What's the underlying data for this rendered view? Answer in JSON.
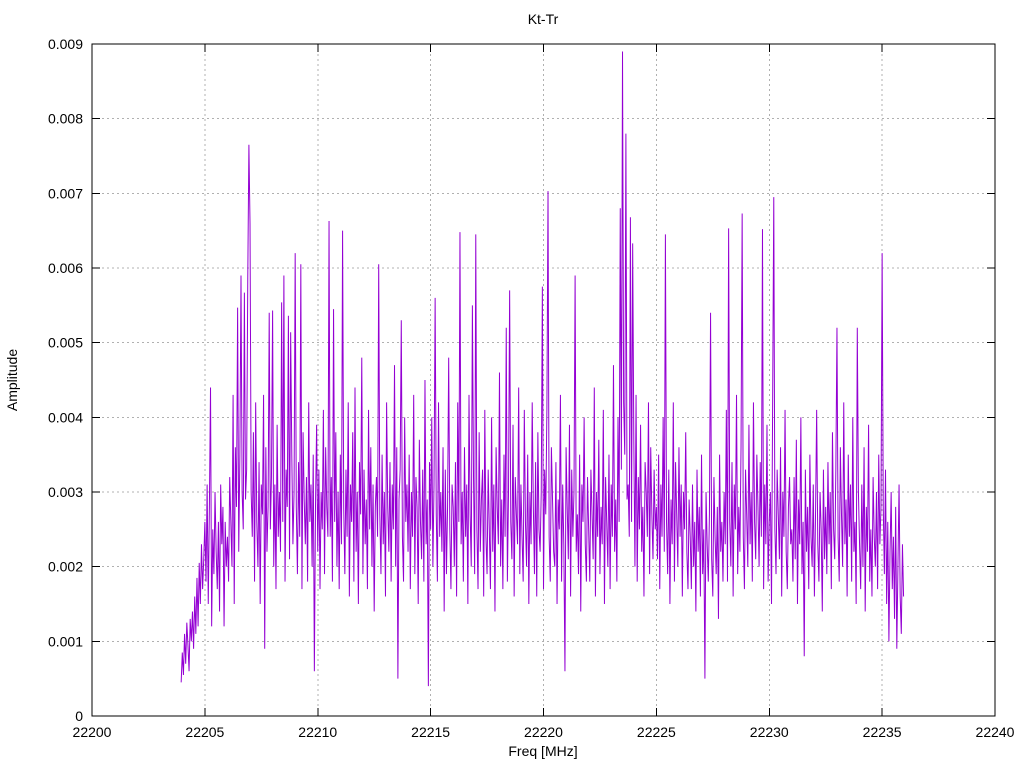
{
  "chart_data": {
    "type": "line",
    "title": "Kt-Tr",
    "xlabel": "Freq [MHz]",
    "ylabel": "Amplitude",
    "xlim": [
      22200,
      22240
    ],
    "ylim": [
      0,
      0.009
    ],
    "grid": true,
    "legend": "none",
    "line_color": "#9400d3",
    "x_ticks": [
      {
        "value": 22200,
        "label": "22200"
      },
      {
        "value": 22205,
        "label": "22205"
      },
      {
        "value": 22210,
        "label": "22210"
      },
      {
        "value": 22215,
        "label": "22215"
      },
      {
        "value": 22220,
        "label": "22220"
      },
      {
        "value": 22225,
        "label": "22225"
      },
      {
        "value": 22230,
        "label": "22230"
      },
      {
        "value": 22235,
        "label": "22235"
      },
      {
        "value": 22240,
        "label": "22240"
      }
    ],
    "y_ticks": [
      {
        "value": 0,
        "label": "0"
      },
      {
        "value": 0.001,
        "label": "0.001"
      },
      {
        "value": 0.002,
        "label": "0.002"
      },
      {
        "value": 0.003,
        "label": "0.003"
      },
      {
        "value": 0.004,
        "label": "0.004"
      },
      {
        "value": 0.005,
        "label": "0.005"
      },
      {
        "value": 0.006,
        "label": "0.006"
      },
      {
        "value": 0.007,
        "label": "0.007"
      },
      {
        "value": 0.008,
        "label": "0.008"
      },
      {
        "value": 0.009,
        "label": "0.009"
      }
    ],
    "series": [
      {
        "name": "Kt-Tr",
        "x_start": 22203.95,
        "x_step": 0.05,
        "y_scale": 1e-05,
        "y_values": [
          45,
          85,
          55,
          110,
          70,
          125,
          95,
          60,
          130,
          100,
          140,
          90,
          160,
          110,
          185,
          120,
          205,
          150,
          230,
          170,
          210,
          260,
          180,
          310,
          150,
          280,
          440,
          120,
          250,
          190,
          300,
          220,
          170,
          260,
          140,
          310,
          230,
          280,
          120,
          260,
          200,
          240,
          180,
          320,
          260,
          200,
          430,
          150,
          360,
          280,
          547,
          220,
          350,
          590,
          300,
          250,
          567,
          290,
          330,
          586,
          765,
          660,
          300,
          240,
          380,
          180,
          420,
          260,
          200,
          340,
          150,
          310,
          270,
          430,
          90,
          360,
          220,
          280,
          540,
          250,
          320,
          543,
          200,
          310,
          170,
          390,
          240,
          300,
          220,
          554,
          260,
          590,
          180,
          330,
          280,
          536,
          210,
          514,
          350,
          230,
          300,
          620,
          280,
          190,
          340,
          240,
          605,
          170,
          380,
          290,
          230,
          320,
          180,
          420,
          260,
          310,
          200,
          350,
          60,
          280,
          390,
          220,
          330,
          170,
          300,
          250,
          410,
          190,
          360,
          280,
          240,
          663,
          240,
          320,
          180,
          545,
          260,
          380,
          200,
          300,
          170,
          350,
          230,
          650,
          280,
          190,
          330,
          240,
          420,
          160,
          310,
          260,
          380,
          180,
          440,
          220,
          300,
          150,
          340,
          270,
          480,
          190,
          330,
          230,
          290,
          170,
          410,
          250,
          360,
          200,
          310,
          140,
          280,
          320,
          240,
          605,
          270,
          190,
          350,
          230,
          300,
          160,
          420,
          280,
          220,
          340,
          180,
          310,
          250,
          470,
          200,
          360,
          50,
          290,
          330,
          530,
          240,
          180,
          400,
          260,
          310,
          220,
          350,
          170,
          300,
          240,
          430,
          190,
          320,
          280,
          150,
          370,
          260,
          210,
          330,
          180,
          450,
          230,
          290,
          40,
          340,
          250,
          400,
          200,
          310,
          560,
          270,
          180,
          420,
          240,
          300,
          220,
          360,
          140,
          330,
          190,
          280,
          480,
          250,
          170,
          310,
          280,
          200,
          340,
          160,
          420,
          260,
          648,
          230,
          300,
          180,
          360,
          240,
          310,
          150,
          430,
          270,
          200,
          550,
          320,
          190,
          645,
          250,
          170,
          380,
          220,
          290,
          330,
          160,
          410,
          240,
          190,
          330,
          250,
          170,
          400,
          220,
          310,
          140,
          360,
          280,
          230,
          460,
          200,
          290,
          170,
          350,
          240,
          520,
          180,
          300,
          570,
          260,
          210,
          390,
          160,
          320,
          270,
          230,
          440,
          190,
          310,
          240,
          180,
          410,
          260,
          200,
          350,
          150,
          300,
          230,
          420,
          280,
          190,
          340,
          160,
          380,
          250,
          220,
          300,
          575,
          170,
          330,
          270,
          410,
          703,
          240,
          180,
          360,
          290,
          220,
          200,
          340,
          150,
          290,
          250,
          430,
          180,
          310,
          230,
          60,
          360,
          280,
          210,
          390,
          160,
          330,
          240,
          300,
          590,
          220,
          270,
          190,
          350,
          140,
          310,
          260,
          400,
          230,
          180,
          320,
          250,
          180,
          330,
          270,
          210,
          440,
          160,
          300,
          240,
          370,
          190,
          280,
          230,
          410,
          150,
          320,
          260,
          200,
          350,
          170,
          310,
          240,
          470,
          220,
          290,
          180,
          400,
          260,
          680,
          330,
          890,
          420,
          350,
          780,
          290,
          310,
          240,
          668,
          260,
          633,
          370,
          200,
          430,
          180,
          320,
          250,
          390,
          220,
          280,
          160,
          340,
          300,
          240,
          420,
          190,
          360,
          270,
          210,
          330,
          250,
          280,
          210,
          350,
          170,
          310,
          240,
          400,
          220,
          645,
          260,
          190,
          330,
          150,
          290,
          230,
          420,
          180,
          340,
          270,
          200,
          360,
          240,
          310,
          160,
          300,
          250,
          380,
          220,
          170,
          290,
          240,
          170,
          310,
          200,
          260,
          140,
          330,
          220,
          280,
          160,
          350,
          190,
          250,
          50,
          300,
          230,
          180,
          270,
          540,
          210,
          160,
          320,
          240,
          190,
          280,
          130,
          350,
          220,
          260,
          180,
          300,
          230,
          410,
          180,
          653,
          260,
          200,
          340,
          160,
          310,
          250,
          430,
          190,
          280,
          220,
          360,
          673,
          240,
          170,
          330,
          270,
          200,
          390,
          230,
          300,
          180,
          420,
          260,
          210,
          350,
          280,
          200,
          340,
          240,
          652,
          170,
          310,
          230,
          390,
          180,
          260,
          300,
          150,
          420,
          695,
          250,
          190,
          330,
          270,
          210,
          360,
          160,
          300,
          240,
          410,
          220,
          170,
          280,
          320,
          230,
          250,
          180,
          320,
          210,
          370,
          150,
          290,
          230,
          400,
          190,
          260,
          80,
          330,
          220,
          280,
          170,
          350,
          240,
          200,
          310,
          160,
          270,
          410,
          230,
          180,
          300,
          250,
          140,
          330,
          210,
          280,
          190,
          340,
          230,
          300,
          170,
          380,
          250,
          210,
          330,
          520,
          240,
          180,
          360,
          270,
          200,
          420,
          230,
          290,
          160,
          350,
          240,
          310,
          180,
          400,
          220,
          260,
          150,
          520,
          300,
          230,
          170,
          310,
          200,
          360,
          140,
          280,
          220,
          390,
          180,
          250,
          160,
          320,
          240,
          200,
          300,
          170,
          350,
          230,
          280,
          620,
          280,
          190,
          330,
          150,
          260,
          100,
          220,
          300,
          170,
          240,
          130,
          280,
          90,
          200,
          310,
          160,
          110,
          230,
          160
        ]
      }
    ]
  },
  "colors": {
    "background": "#ffffff",
    "border": "#000000",
    "grid": "#b0b0b0",
    "line": "#9400d3",
    "text": "#000000"
  }
}
